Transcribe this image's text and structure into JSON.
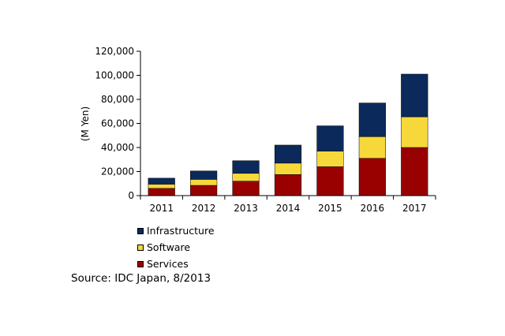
{
  "chart_data": {
    "type": "bar",
    "stacked": true,
    "categories": [
      "2011",
      "2012",
      "2013",
      "2014",
      "2015",
      "2016",
      "2017"
    ],
    "series": [
      {
        "name": "Services",
        "color": "#990000",
        "values": [
          6000,
          8500,
          12000,
          17500,
          24000,
          31000,
          40000
        ]
      },
      {
        "name": "Software",
        "color": "#f7d83a",
        "values": [
          3500,
          5000,
          6500,
          9500,
          13000,
          18000,
          25500
        ]
      },
      {
        "name": "Infrastructure",
        "color": "#0b2a5b",
        "values": [
          5000,
          7000,
          10500,
          15000,
          21000,
          28000,
          35500
        ]
      }
    ],
    "ylabel": "(M Yen)",
    "xlabel": "",
    "ylim": [
      0,
      120000
    ],
    "yticks": [
      "0",
      "20,000",
      "40,000",
      "60,000",
      "80,000",
      "100,000",
      "120,000"
    ],
    "grid": false,
    "legend_position": "bottom-left"
  },
  "source": "Source: IDC Japan, 8/2013"
}
